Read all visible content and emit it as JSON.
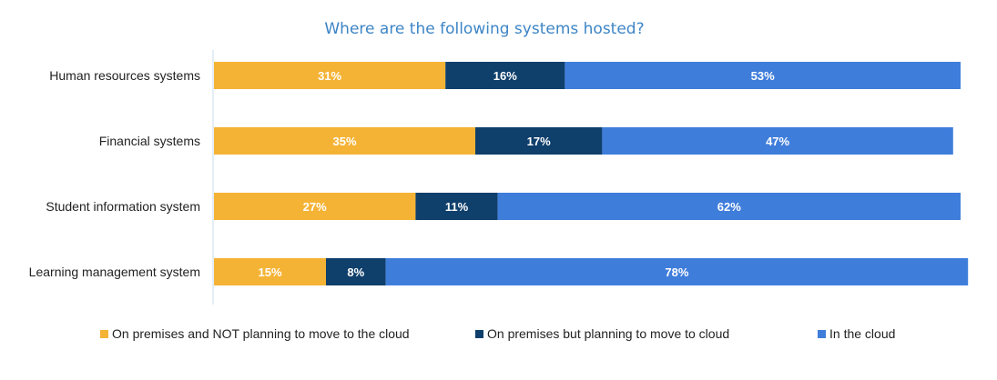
{
  "chart_data": {
    "type": "bar",
    "orientation": "horizontal",
    "stacked": true,
    "title": "Where are the following systems hosted?",
    "categories": [
      "Human resources systems",
      "Financial systems",
      "Student information system",
      "Learning management system"
    ],
    "series": [
      {
        "name": "On premises and NOT planning to move to the cloud",
        "color": "#f5b335",
        "values": [
          31,
          35,
          27,
          15
        ]
      },
      {
        "name": "On premises but planning to move to cloud",
        "color": "#0f3f6b",
        "values": [
          16,
          17,
          11,
          8
        ]
      },
      {
        "name": "In the cloud",
        "color": "#3f7ddb",
        "values": [
          53,
          47,
          62,
          78
        ]
      }
    ],
    "value_suffix": "%",
    "data_labels": true,
    "xlim": [
      0,
      100
    ],
    "grid": false,
    "legend_position": "bottom"
  }
}
